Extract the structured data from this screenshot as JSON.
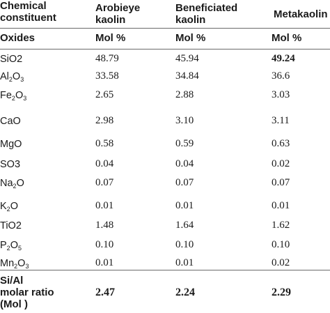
{
  "columns": {
    "constituent": [
      "Chemical",
      "constituent"
    ],
    "arobieye": [
      "Arobieye",
      "kaolin"
    ],
    "beneficiated": [
      "Beneficiated",
      "kaolin"
    ],
    "metakaolin": [
      "Metakaolin"
    ]
  },
  "units_row": {
    "label": "Oxides",
    "arobieye": "Mol %",
    "beneficiated": "Mol %",
    "metakaolin": "Mol %"
  },
  "rows": [
    {
      "base": "SiO",
      "subs": [
        "",
        "2"
      ],
      "arobieye": "48.79",
      "beneficiated": "45.94",
      "metakaolin": "49.24",
      "metakaolin_bold": true
    },
    {
      "base": "Al",
      "subs": [
        "2",
        "O",
        "3"
      ],
      "arobieye": "33.58",
      "beneficiated": "34.84",
      "metakaolin": "36.6"
    },
    {
      "base": "Fe",
      "subs": [
        "2",
        "O",
        "3"
      ],
      "arobieye": "2.65",
      "beneficiated": "2.88",
      "metakaolin": "3.03"
    },
    {
      "base": "CaO",
      "subs": [],
      "arobieye": "2.98",
      "beneficiated": "3.10",
      "metakaolin": "3.11"
    },
    {
      "base": "MgO",
      "subs": [],
      "arobieye": "0.58",
      "beneficiated": "0.59",
      "metakaolin": "0.63"
    },
    {
      "base": "SO",
      "subs": [
        "",
        "3"
      ],
      "arobieye": "0.04",
      "beneficiated": "0.04",
      "metakaolin": "0.02"
    },
    {
      "base": "Na",
      "subs": [
        "2",
        "O"
      ],
      "arobieye": "0.07",
      "beneficiated": "0.07",
      "metakaolin": "0.07"
    },
    {
      "base": "K",
      "subs": [
        "2",
        "O"
      ],
      "arobieye": "0.01",
      "beneficiated": "0.01",
      "metakaolin": "0.01"
    },
    {
      "base": "TiO",
      "subs": [
        "",
        "2"
      ],
      "arobieye": "1.48",
      "beneficiated": "1.64",
      "metakaolin": "1.62"
    },
    {
      "base": "P",
      "subs": [
        "2",
        "O",
        "5"
      ],
      "arobieye": "0.10",
      "beneficiated": "0.10",
      "metakaolin": "0.10"
    },
    {
      "base": "Mn",
      "subs": [
        "2",
        "O",
        "3"
      ],
      "arobieye": "0.01",
      "beneficiated": "0.01",
      "metakaolin": "0.02"
    }
  ],
  "footer": {
    "label": [
      "Si/Al",
      "molar ratio",
      "(Mol )"
    ],
    "arobieye": "2.47",
    "beneficiated": "2.24",
    "metakaolin": "2.29"
  }
}
